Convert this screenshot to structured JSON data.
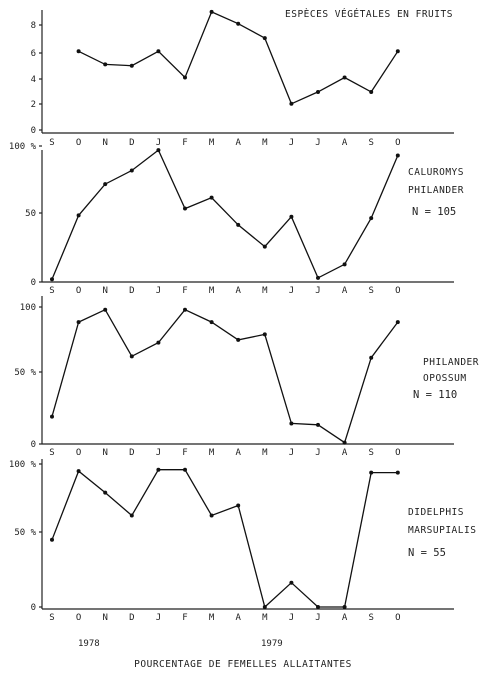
{
  "months": [
    "S",
    "O",
    "N",
    "D",
    "J",
    "F",
    "M",
    "A",
    "M",
    "J",
    "J",
    "A",
    "S",
    "O"
  ],
  "years": [
    "1978",
    "1979"
  ],
  "footer": "POURCENTAGE DE FEMELLES ALLAITANTES",
  "chart_data": [
    {
      "type": "line",
      "title": "ESPÈCES VÉGÉTALES EN FRUITS",
      "categories": [
        "S",
        "O",
        "N",
        "D",
        "J",
        "F",
        "M",
        "A",
        "M",
        "J",
        "J",
        "A",
        "S",
        "O"
      ],
      "y_ticks": [
        "0",
        "2",
        "4",
        "6",
        "8"
      ],
      "ylim": [
        0,
        9.5
      ],
      "values": [
        null,
        6,
        5,
        4.9,
        6,
        4,
        9,
        8.1,
        7,
        2,
        2.9,
        4,
        2.9,
        6
      ],
      "labels": []
    },
    {
      "type": "line",
      "categories": [
        "S",
        "O",
        "N",
        "D",
        "J",
        "F",
        "M",
        "A",
        "M",
        "J",
        "J",
        "A",
        "S",
        "O"
      ],
      "y_ticks": [
        "0",
        "50",
        "100 %"
      ],
      "ylim": [
        0,
        100
      ],
      "values": [
        2,
        49,
        72,
        82,
        97,
        54,
        62,
        42,
        26,
        48,
        3,
        13,
        47,
        93
      ],
      "labels": [
        "CALUROMYS",
        "PHILANDER"
      ],
      "n_label": "N = 105"
    },
    {
      "type": "line",
      "categories": [
        "S",
        "O",
        "N",
        "D",
        "J",
        "F",
        "M",
        "A",
        "M",
        "J",
        "J",
        "A",
        "S",
        "O"
      ],
      "y_ticks": [
        "0",
        "50 %",
        "100"
      ],
      "ylim": [
        0,
        100
      ],
      "values": [
        20,
        89,
        98,
        64,
        74,
        98,
        89,
        76,
        80,
        15,
        14,
        1,
        63,
        89
      ],
      "labels": [
        "PHILANDER",
        "OPOSSUM"
      ],
      "n_label": "N = 110"
    },
    {
      "type": "line",
      "categories": [
        "S",
        "O",
        "N",
        "D",
        "J",
        "F",
        "M",
        "A",
        "M",
        "J",
        "J",
        "A",
        "S",
        "O"
      ],
      "y_ticks": [
        "0",
        "50 %",
        "100 %"
      ],
      "ylim": [
        0,
        100
      ],
      "values": [
        47,
        95,
        80,
        64,
        96,
        96,
        64,
        71,
        0,
        17,
        0,
        0,
        94,
        94
      ],
      "labels": [
        "DIDELPHIS",
        "MARSUPIALIS"
      ],
      "n_label": "N = 55"
    }
  ]
}
